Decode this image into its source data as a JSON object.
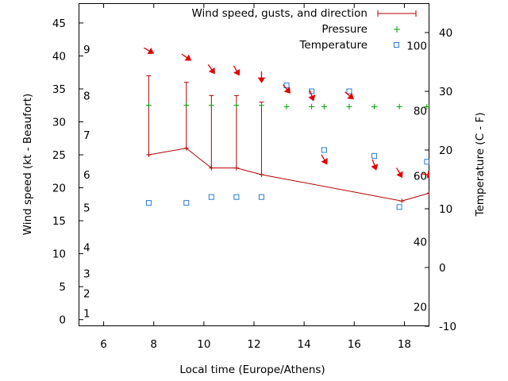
{
  "chart_data": {
    "type": "line",
    "xlabel": "Local time (Europe/Athens)",
    "ylabel": "Wind speed (kt - Beaufort)",
    "y2label": "Temperature (C - F)",
    "xlim": [
      5,
      19
    ],
    "ylim": [
      -1,
      48
    ],
    "y2lim": [
      -10,
      45
    ],
    "x_ticks": [
      6,
      8,
      10,
      12,
      14,
      16,
      18
    ],
    "y_ticks": [
      0,
      5,
      10,
      15,
      20,
      25,
      30,
      35,
      40,
      45
    ],
    "y2_ticks": [
      -10,
      0,
      10,
      20,
      30,
      40
    ],
    "beaufort_labels": [
      {
        "label": "1",
        "wind": 1
      },
      {
        "label": "2",
        "wind": 4
      },
      {
        "label": "3",
        "wind": 7
      },
      {
        "label": "4",
        "wind": 11
      },
      {
        "label": "5",
        "wind": 17
      },
      {
        "label": "6",
        "wind": 22
      },
      {
        "label": "7",
        "wind": 28
      },
      {
        "label": "8",
        "wind": 34
      },
      {
        "label": "9",
        "wind": 41
      }
    ],
    "fahrenheit_labels": [
      {
        "label": "20",
        "temp": -6.7
      },
      {
        "label": "40",
        "temp": 4.4
      },
      {
        "label": "60",
        "temp": 15.6
      },
      {
        "label": "80",
        "temp": 26.7
      },
      {
        "label": "100",
        "temp": 37.8
      }
    ],
    "legend": {
      "wind": "Wind speed, gusts, and direction",
      "pressure": "Pressure",
      "temperature": "Temperature"
    },
    "legend_position": "top-right",
    "series": [
      {
        "name": "Wind speed, gusts, and direction",
        "color": "#b30000",
        "x": [
          7.8,
          9.3,
          10.3,
          11.3,
          12.3,
          17.9,
          19.0
        ],
        "values": [
          25,
          26,
          23,
          23,
          22,
          18,
          19.2
        ],
        "gusts": [
          37,
          36,
          34,
          34,
          33,
          null,
          null
        ]
      },
      {
        "name": "Pressure",
        "color": "#00a000",
        "x": [
          7.8,
          9.3,
          10.3,
          11.3,
          12.3,
          13.3,
          14.3,
          14.8,
          15.8,
          16.8,
          17.8,
          18.9
        ],
        "values": [
          32.5,
          32.5,
          32.5,
          32.5,
          32.5,
          32.3,
          32.3,
          32.3,
          32.3,
          32.3,
          32.3,
          32.3
        ]
      },
      {
        "name": "Temperature",
        "color": "#2b7bd1",
        "x": [
          7.8,
          9.3,
          10.3,
          11.3,
          12.3,
          13.3,
          14.3,
          14.8,
          15.8,
          16.8,
          17.8,
          18.9
        ],
        "values": [
          11,
          11,
          12,
          12,
          12,
          31,
          30,
          20,
          30,
          19,
          10.3,
          18
        ]
      }
    ],
    "direction_arrows": {
      "color": "#e00000",
      "points": [
        {
          "x": 7.8,
          "y": 40.8,
          "angle": 300
        },
        {
          "x": 9.3,
          "y": 39.8,
          "angle": 305
        },
        {
          "x": 10.3,
          "y": 38.0,
          "angle": 325
        },
        {
          "x": 11.3,
          "y": 37.8,
          "angle": 330
        },
        {
          "x": 12.3,
          "y": 36.8,
          "angle": 0
        },
        {
          "x": 13.3,
          "y": 35.0,
          "angle": 320
        },
        {
          "x": 14.3,
          "y": 34.0,
          "angle": 340
        },
        {
          "x": 14.8,
          "y": 24.3,
          "angle": 330
        },
        {
          "x": 15.8,
          "y": 34.0,
          "angle": 310
        },
        {
          "x": 16.8,
          "y": 23.5,
          "angle": 340
        },
        {
          "x": 17.8,
          "y": 22.3,
          "angle": 330
        },
        {
          "x": 18.9,
          "y": 22.0,
          "angle": 280
        }
      ]
    }
  }
}
